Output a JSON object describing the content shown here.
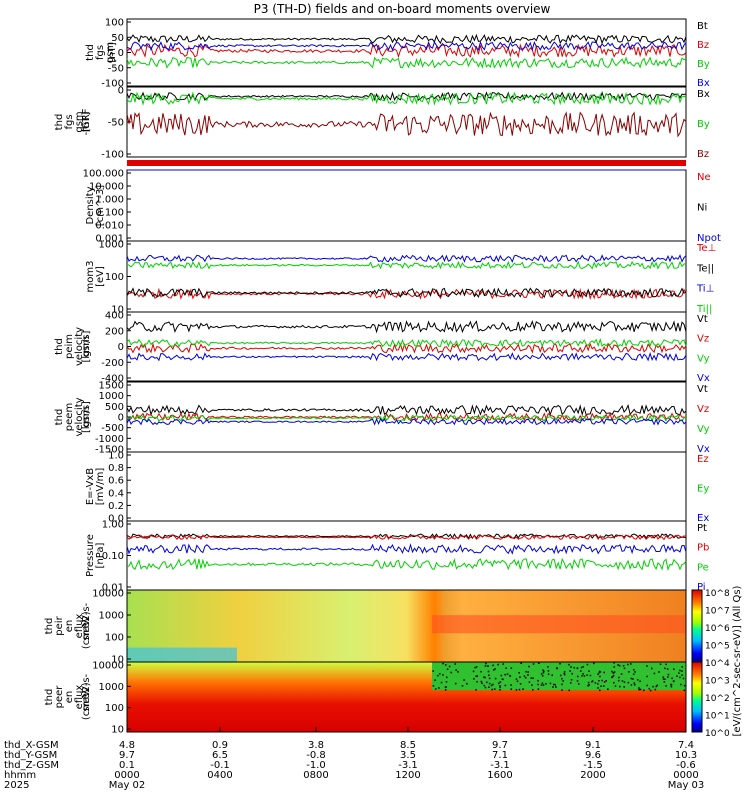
{
  "title": "P3 (TH-D) fields and on-board moments overview",
  "chart_data": {
    "type": "line",
    "x_axis": {
      "rows": [
        {
          "label": "thd_X-GSM",
          "values": [
            "4.8",
            "0.9",
            "3.8",
            "8.5",
            "9.7",
            "9.1",
            "7.4"
          ]
        },
        {
          "label": "thd_Y-GSM",
          "values": [
            "9.7",
            "6.5",
            "-0.8",
            "3.5",
            "7.1",
            "9.6",
            "10.3"
          ]
        },
        {
          "label": "thd_Z-GSM",
          "values": [
            "0.1",
            "-0.1",
            "-1.0",
            "-3.1",
            "-3.1",
            "-1.5",
            "-0.6"
          ]
        },
        {
          "label": "hhmm",
          "values": [
            "0000",
            "0400",
            "0800",
            "1200",
            "1600",
            "2000",
            "0000"
          ]
        },
        {
          "label": "2025",
          "values": [
            "May 02",
            "",
            "",
            "",
            "",
            "",
            "May 03"
          ]
        }
      ]
    },
    "panels": [
      {
        "ylabel": [
          "thd",
          "fgs",
          "gsm",
          "[nT]"
        ],
        "ticks": [
          "100",
          "50",
          "0",
          "-50",
          "-100"
        ],
        "ylim": [
          -100,
          100
        ],
        "log": false,
        "series": [
          {
            "name": "Bt",
            "color": "#000000",
            "base": 40,
            "amp": 12
          },
          {
            "name": "Bz",
            "color": "#e00000",
            "base": 5,
            "amp": 18
          },
          {
            "name": "By",
            "color": "#00d000",
            "base": -30,
            "amp": 15
          },
          {
            "name": "Bx",
            "color": "#0000e0",
            "base": 20,
            "amp": 12
          }
        ]
      },
      {
        "ylabel": [
          "thd",
          "fgs",
          "gsm",
          "-IGRF",
          "[nT]"
        ],
        "ticks": [
          "0",
          "-50",
          "-100"
        ],
        "ylim": [
          -130,
          20
        ],
        "log": false,
        "series": [
          {
            "name": "Bx",
            "color": "#000000",
            "base": 0,
            "amp": 8
          },
          {
            "name": "By",
            "color": "#00d000",
            "base": -5,
            "amp": 12
          },
          {
            "name": "Bz",
            "color": "#8b0000",
            "base": -60,
            "amp": 25
          }
        ]
      },
      {
        "ylabel": [
          "Density",
          "[cm^-3]"
        ],
        "ticks": [
          "100.000",
          "10.000",
          "1.000",
          "0.100",
          "0.010",
          "0.001"
        ],
        "ylim": [
          0.001,
          100
        ],
        "log": true,
        "series": [
          {
            "name": "Ne",
            "color": "#e00000",
            "base": 3.5,
            "amp": 0.3
          },
          {
            "name": "Ni",
            "color": "#000000",
            "base": 3.7,
            "amp": 0.3
          },
          {
            "name": "Npot",
            "color": "#0000e0",
            "base": 2.7,
            "amp": 0.4
          }
        ]
      },
      {
        "ylabel": [
          "mom3",
          "[eV]"
        ],
        "ticks": [
          "1000",
          "100",
          "10"
        ],
        "ylim": [
          3,
          5000
        ],
        "log": true,
        "series": [
          {
            "name": "Te⊥",
            "color": "#e00000",
            "base": 1.3,
            "amp": 0.2
          },
          {
            "name": "Te||",
            "color": "#000000",
            "base": 1.35,
            "amp": 0.2
          },
          {
            "name": "Ti⊥",
            "color": "#0000e0",
            "base": 2.9,
            "amp": 0.15
          },
          {
            "name": "Ti||",
            "color": "#00d000",
            "base": 2.6,
            "amp": 0.15
          }
        ]
      },
      {
        "ylabel": [
          "thd",
          "peim",
          "velocity",
          "gsm",
          "[km/s]"
        ],
        "ticks": [
          "400",
          "200",
          "0",
          "-200",
          "-400"
        ],
        "ylim": [
          -400,
          400
        ],
        "log": false,
        "series": [
          {
            "name": "Vt",
            "color": "#000000",
            "base": 230,
            "amp": 60
          },
          {
            "name": "Vz",
            "color": "#e00000",
            "base": -20,
            "amp": 50
          },
          {
            "name": "Vy",
            "color": "#00d000",
            "base": 40,
            "amp": 40
          },
          {
            "name": "Vx",
            "color": "#0000e0",
            "base": -120,
            "amp": 40
          }
        ]
      },
      {
        "ylabel": [
          "thd",
          "peem",
          "velocity",
          "gsm",
          "[km/s]"
        ],
        "ticks": [
          "1500",
          "1000",
          "500",
          "0",
          "-500",
          "-1000",
          "-1500"
        ],
        "ylim": [
          -1500,
          1500
        ],
        "log": false,
        "series": [
          {
            "name": "Vt",
            "color": "#000000",
            "base": 300,
            "amp": 200
          },
          {
            "name": "Vz",
            "color": "#e00000",
            "base": 0,
            "amp": 150
          },
          {
            "name": "Vy",
            "color": "#00d000",
            "base": -50,
            "amp": 120
          },
          {
            "name": "Vx",
            "color": "#0000e0",
            "base": -200,
            "amp": 120
          }
        ]
      },
      {
        "ylabel": [
          "E=-VxB",
          "[mV/m]"
        ],
        "ticks": [
          "1.0",
          "0.8",
          "0.6",
          "0.4",
          "0.2",
          "0.0"
        ],
        "ylim": [
          0,
          1
        ],
        "log": false,
        "series": [
          {
            "name": "Ez",
            "color": "#e00000"
          },
          {
            "name": "Ey",
            "color": "#00d000"
          },
          {
            "name": "Ex",
            "color": "#0000e0"
          }
        ]
      },
      {
        "ylabel": [
          "Pressure",
          "[nPa]"
        ],
        "ticks": [
          "1.00",
          "0.10",
          "0.01"
        ],
        "ylim": [
          0.005,
          8
        ],
        "log": true,
        "series": [
          {
            "name": "Pt",
            "color": "#000000",
            "base": 0.2,
            "amp": 0.1
          },
          {
            "name": "Pb",
            "color": "#e00000",
            "base": 0.15,
            "amp": 0.1
          },
          {
            "name": "Pe",
            "color": "#00d000",
            "base": -1.1,
            "amp": 0.25
          },
          {
            "name": "Pi",
            "color": "#0000e0",
            "base": -0.4,
            "amp": 0.2
          }
        ]
      },
      {
        "ylabel": [
          "thd",
          "peir",
          "en",
          "eflux",
          "eV",
          "(cm^2-s-",
          "sr-eV)"
        ],
        "ticks": [
          "10000",
          "1000",
          "100",
          "10"
        ],
        "spectrogram": true
      },
      {
        "ylabel": [
          "thd",
          "peer",
          "en",
          "eflux",
          "eV",
          "(cm^2-s-",
          "sr-eV)"
        ],
        "ticks": [
          "10000",
          "1000",
          "100",
          "10"
        ],
        "spectrogram": true
      }
    ],
    "colorbar": {
      "ticks": [
        "10^8",
        "10^7",
        "10^6",
        "10^5",
        "10^4",
        "10^3",
        "10^2",
        "10^1",
        "10^0"
      ],
      "label": "[eV/(cm^2-sec-sr-eV)] (All Qs)"
    }
  }
}
